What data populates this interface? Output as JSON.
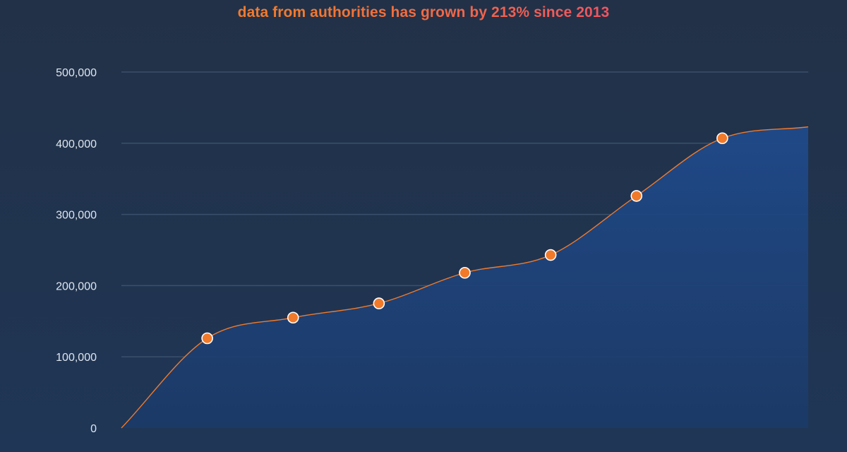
{
  "headline": "data from authorities has grown by 213% since 2013",
  "colors": {
    "line": "#f07a2a",
    "point": "#f07a2a",
    "area_top": "#1f4a8a",
    "area_bottom": "#1c3a68",
    "headline_start": "#f37a2e",
    "headline_end": "#ef5166"
  },
  "chart_data": {
    "type": "area",
    "title": "data from authorities has grown by 213% since 2013",
    "xlabel": "",
    "ylabel": "",
    "ylim": [
      0,
      500000
    ],
    "yticks": [
      0,
      100000,
      200000,
      300000,
      400000,
      500000
    ],
    "ytick_labels": [
      "0",
      "100,000",
      "200,000",
      "300,000",
      "400,000",
      "500,000"
    ],
    "grid": true,
    "series": [
      {
        "values": [
          0,
          126000,
          155000,
          175000,
          218000,
          243000,
          326000,
          407000,
          423000
        ],
        "markers": [
          false,
          true,
          true,
          true,
          true,
          true,
          true,
          true,
          false
        ]
      }
    ]
  }
}
